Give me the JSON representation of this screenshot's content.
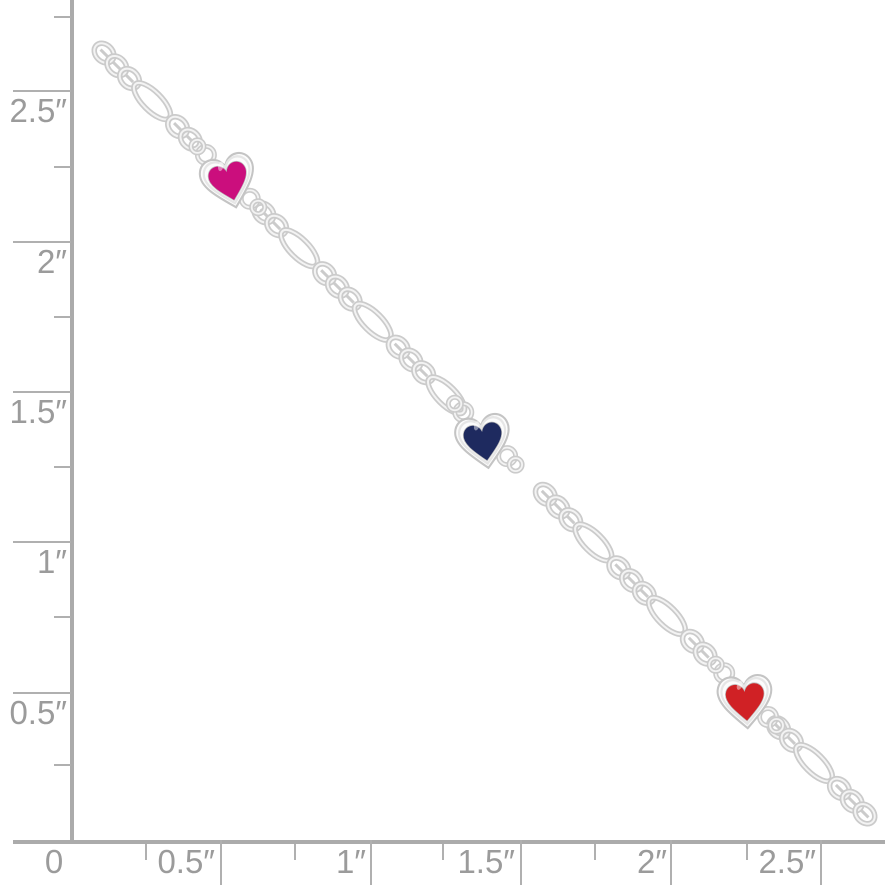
{
  "ruler": {
    "unit": "inches",
    "axis_color": "#ababab",
    "tick_color": "#b0b0b0",
    "label_color": "#9b9b9b",
    "major_step_in": 0.5,
    "minor_step_in": 0.25,
    "left_labels": [
      "2.5″",
      "2″",
      "1.5″",
      "1″",
      "0.5″"
    ],
    "bottom_labels": [
      "0",
      "0.5″",
      "1″",
      "1.5″",
      "2″",
      "2.5″"
    ]
  },
  "bracelet": {
    "style": "silver figaro chain with enamel heart stations",
    "metal": {
      "mid": "#cbcbcb",
      "highlight": "#f3f3f3",
      "frame": "#c4c4c4",
      "surface": "#fcfcfc",
      "bevel": "#e6e6e6"
    },
    "hearts": [
      {
        "name": "pink-enamel-heart",
        "color": "#cb0e7d"
      },
      {
        "name": "navy-enamel-heart",
        "color": "#1e2a5f"
      },
      {
        "name": "red-enamel-heart",
        "color": "#d02125"
      }
    ]
  },
  "background": "#ffffff"
}
